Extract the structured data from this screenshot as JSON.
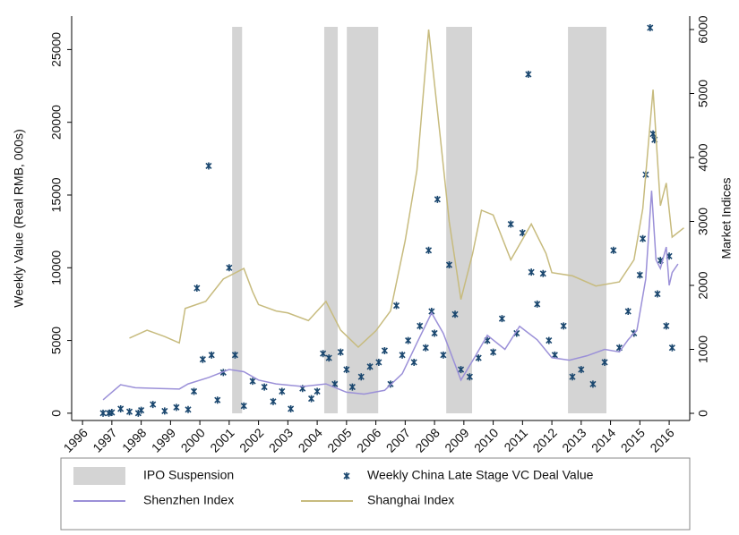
{
  "chart_data": {
    "type": "combo",
    "xlim": [
      1995.63,
      2016.7
    ],
    "xticks": [
      1996,
      1997,
      1998,
      1999,
      2000,
      2001,
      2002,
      2003,
      2004,
      2005,
      2006,
      2007,
      2008,
      2009,
      2010,
      2011,
      2012,
      2013,
      2014,
      2015,
      2016
    ],
    "ylim": [
      -500,
      27300
    ],
    "yticks": [
      0,
      5000,
      10000,
      15000,
      20000,
      25000
    ],
    "y2lim": [
      -112,
      6210
    ],
    "y2ticks": [
      0,
      1000,
      2000,
      3000,
      4000,
      5000,
      6000
    ],
    "ylabel": "Weekly Value (Real RMB, 000s)",
    "y2label": "Market Indices",
    "shaded_periods": {
      "name": "IPO Suspension",
      "color": "#d4d4d4",
      "ranges": [
        [
          2001.1,
          2001.44
        ],
        [
          2004.24,
          2004.7
        ],
        [
          2005.01,
          2006.08
        ],
        [
          2008.4,
          2009.28
        ],
        [
          2012.55,
          2013.86
        ]
      ]
    },
    "series": [
      {
        "name": "Weekly China Late Stage VC Deal Value",
        "type": "scatter",
        "color": "#1a476f",
        "x": [
          1996.7,
          1996.9,
          1997.0,
          1997.3,
          1997.6,
          1997.9,
          1998.0,
          1998.4,
          1998.8,
          1999.2,
          1999.6,
          1999.8,
          1999.9,
          2000.1,
          2000.3,
          2000.4,
          2000.6,
          2000.8,
          2001.0,
          2001.2,
          2001.5,
          2001.8,
          2002.2,
          2002.5,
          2002.8,
          2003.1,
          2003.5,
          2003.8,
          2004.0,
          2004.2,
          2004.4,
          2004.6,
          2004.8,
          2005.0,
          2005.2,
          2005.5,
          2005.8,
          2006.1,
          2006.3,
          2006.5,
          2006.7,
          2006.9,
          2007.1,
          2007.3,
          2007.5,
          2007.7,
          2007.8,
          2007.9,
          2008.0,
          2008.1,
          2008.3,
          2008.5,
          2008.7,
          2008.9,
          2009.2,
          2009.5,
          2009.8,
          2010.0,
          2010.3,
          2010.6,
          2010.8,
          2011.0,
          2011.2,
          2011.3,
          2011.5,
          2011.7,
          2011.9,
          2012.1,
          2012.4,
          2012.7,
          2013.0,
          2013.4,
          2013.8,
          2014.1,
          2014.3,
          2014.6,
          2014.8,
          2015.0,
          2015.1,
          2015.2,
          2015.35,
          2015.45,
          2015.5,
          2015.6,
          2015.7,
          2015.9,
          2016.0,
          2016.1
        ],
        "values": [
          0,
          0,
          50,
          300,
          100,
          0,
          200,
          600,
          150,
          400,
          250,
          1500,
          8600,
          3700,
          17000,
          4000,
          900,
          2800,
          10000,
          4000,
          500,
          2200,
          1800,
          800,
          1500,
          300,
          1700,
          1000,
          1500,
          4100,
          3800,
          2000,
          4200,
          3000,
          1800,
          2500,
          3200,
          3500,
          4300,
          2000,
          7400,
          4000,
          5000,
          3500,
          6000,
          4500,
          11200,
          7000,
          5500,
          14700,
          4000,
          10200,
          6800,
          3000,
          2500,
          3800,
          5000,
          4200,
          6500,
          13000,
          5500,
          12400,
          23300,
          9700,
          7500,
          9600,
          5000,
          4000,
          6000,
          2500,
          3000,
          2000,
          3500,
          11200,
          4500,
          7000,
          5500,
          9500,
          12000,
          16400,
          26500,
          19200,
          18800,
          8200,
          10500,
          6000,
          10800,
          4500
        ]
      },
      {
        "name": "Shenzhen Index",
        "type": "line",
        "axis": "y2",
        "color": "#9b90d8",
        "x": [
          1996.7,
          1997.3,
          1997.8,
          1998.5,
          1999.3,
          1999.6,
          2000.3,
          2001.0,
          2001.5,
          2002.0,
          2002.6,
          2003.5,
          2004.3,
          2005.0,
          2005.6,
          2006.3,
          2006.9,
          2007.4,
          2007.9,
          2008.3,
          2008.9,
          2009.4,
          2009.8,
          2010.4,
          2010.9,
          2011.5,
          2012.0,
          2012.6,
          2013.2,
          2013.8,
          2014.3,
          2014.6,
          2014.9,
          2015.2,
          2015.4,
          2015.55,
          2015.7,
          2015.9,
          2016.0,
          2016.1,
          2016.3
        ],
        "values": [
          210,
          447,
          400,
          390,
          380,
          460,
          560,
          685,
          650,
          520,
          460,
          420,
          460,
          330,
          300,
          360,
          620,
          1100,
          1570,
          1250,
          520,
          900,
          1220,
          1000,
          1360,
          1150,
          870,
          830,
          900,
          1000,
          960,
          1150,
          1300,
          2100,
          3480,
          2400,
          2265,
          2600,
          2000,
          2200,
          2335
        ]
      },
      {
        "name": "Shanghai Index",
        "type": "line",
        "axis": "y2",
        "color": "#c7bb7e",
        "x": [
          1997.6,
          1998.2,
          1998.8,
          1999.3,
          1999.5,
          2000.2,
          2000.8,
          2001.5,
          2001.8,
          2002.0,
          2002.6,
          2003.0,
          2003.7,
          2004.3,
          2004.8,
          2005.4,
          2006.0,
          2006.5,
          2007.0,
          2007.4,
          2007.8,
          2008.2,
          2008.5,
          2008.9,
          2009.3,
          2009.6,
          2010.0,
          2010.6,
          2011.3,
          2011.8,
          2012.0,
          2012.7,
          2013.5,
          2014.3,
          2014.8,
          2015.1,
          2015.45,
          2015.7,
          2015.9,
          2016.1,
          2016.5
        ],
        "values": [
          1175,
          1300,
          1200,
          1100,
          1640,
          1750,
          2100,
          2265,
          1900,
          1700,
          1600,
          1570,
          1450,
          1750,
          1300,
          1035,
          1290,
          1600,
          2700,
          3800,
          6000,
          4300,
          3000,
          1780,
          2500,
          3175,
          3100,
          2400,
          2960,
          2500,
          2200,
          2150,
          1990,
          2055,
          2400,
          3200,
          5060,
          3245,
          3600,
          2755,
          2900
        ]
      }
    ]
  }
}
